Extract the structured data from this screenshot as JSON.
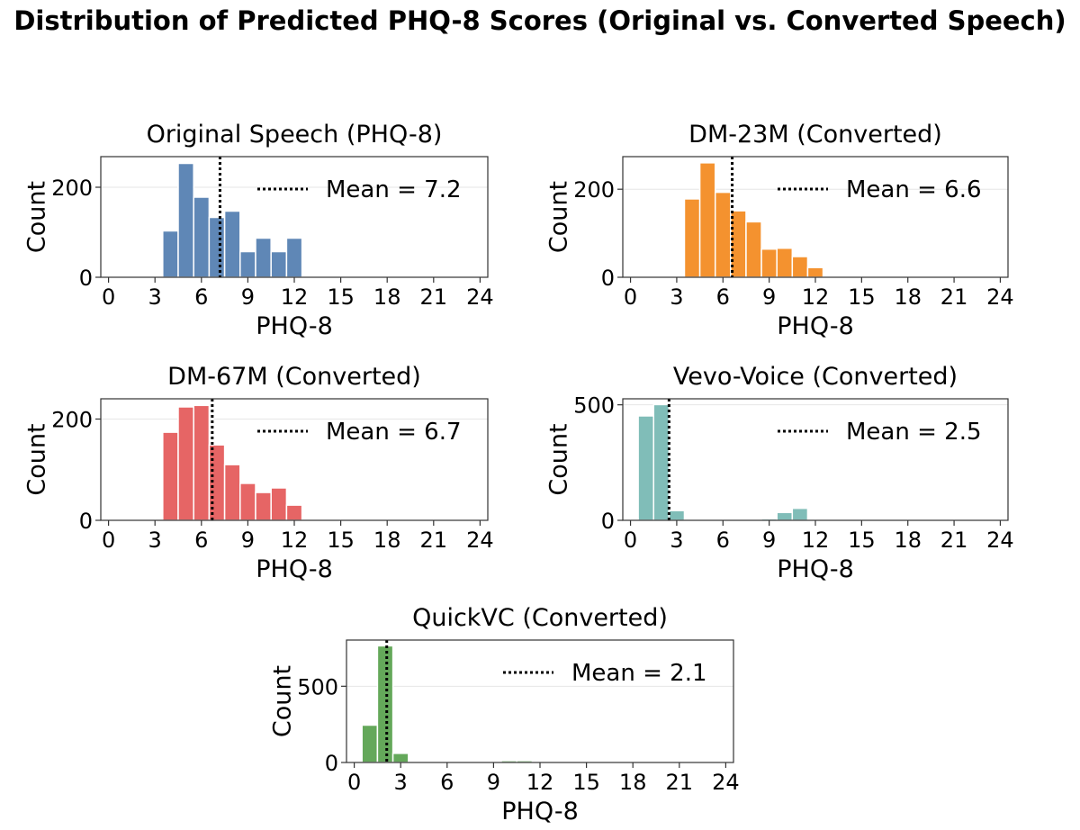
{
  "title": "Distribution of Predicted PHQ-8 Scores (Original vs. Converted Speech)",
  "chart_data": [
    {
      "type": "bar",
      "title": "Original Speech (PHQ-8)",
      "xlabel": "PHQ-8",
      "ylabel": "Count",
      "color": "#5f87b6",
      "bin_edges": [
        3.5,
        4.5,
        5.5,
        6.5,
        7.5,
        8.5,
        9.5,
        10.5,
        11.5,
        12.5
      ],
      "values": [
        103,
        253,
        178,
        133,
        147,
        57,
        87,
        57,
        87
      ],
      "mean": 7.2,
      "legend": "Mean = 7.2",
      "xlim": [
        -0.5,
        24.5
      ],
      "ylim": [
        0,
        268
      ],
      "xticks": [
        0,
        3,
        6,
        9,
        12,
        15,
        18,
        21,
        24
      ],
      "yticks": [
        0,
        200
      ],
      "grid": "y",
      "legend_position": "upper right"
    },
    {
      "type": "bar",
      "title": "DM-23M (Converted)",
      "xlabel": "PHQ-8",
      "ylabel": "Count",
      "color": "#f4922f",
      "bin_edges": [
        3.5,
        4.5,
        5.5,
        6.5,
        7.5,
        8.5,
        9.5,
        10.5,
        11.5,
        12.5
      ],
      "values": [
        178,
        260,
        193,
        151,
        126,
        64,
        66,
        47,
        22
      ],
      "mean": 6.6,
      "legend": "Mean = 6.6",
      "xlim": [
        -0.5,
        24.5
      ],
      "ylim": [
        0,
        274
      ],
      "xticks": [
        0,
        3,
        6,
        9,
        12,
        15,
        18,
        21,
        24
      ],
      "yticks": [
        0,
        200
      ],
      "grid": "y",
      "legend_position": "upper right"
    },
    {
      "type": "bar",
      "title": "DM-67M (Converted)",
      "xlabel": "PHQ-8",
      "ylabel": "Count",
      "color": "#e66565",
      "bin_edges": [
        3.5,
        4.5,
        5.5,
        6.5,
        7.5,
        8.5,
        9.5,
        10.5,
        11.5,
        12.5
      ],
      "values": [
        174,
        224,
        227,
        149,
        110,
        73,
        55,
        64,
        30
      ],
      "mean": 6.7,
      "legend": "Mean = 6.7",
      "xlim": [
        -0.5,
        24.5
      ],
      "ylim": [
        0,
        240
      ],
      "xticks": [
        0,
        3,
        6,
        9,
        12,
        15,
        18,
        21,
        24
      ],
      "yticks": [
        0,
        200
      ],
      "grid": "y",
      "legend_position": "upper right"
    },
    {
      "type": "bar",
      "title": "Vevo-Voice (Converted)",
      "xlabel": "PHQ-8",
      "ylabel": "Count",
      "color": "#80bdb8",
      "bin_edges": [
        0.5,
        1.5,
        2.5,
        3.5,
        4.5,
        5.5,
        6.5,
        7.5,
        8.5,
        9.5,
        10.5,
        11.5
      ],
      "values": [
        452,
        501,
        42,
        0,
        0,
        0,
        0,
        0,
        7,
        34,
        52
      ],
      "mean": 2.5,
      "legend": "Mean = 2.5",
      "xlim": [
        -0.5,
        24.5
      ],
      "ylim": [
        0,
        526
      ],
      "xticks": [
        0,
        3,
        6,
        9,
        12,
        15,
        18,
        21,
        24
      ],
      "yticks": [
        0,
        500
      ],
      "grid": "y",
      "legend_position": "upper right"
    },
    {
      "type": "bar",
      "title": "QuickVC (Converted)",
      "xlabel": "PHQ-8",
      "ylabel": "Count",
      "color": "#64a85a",
      "bin_edges": [
        0.5,
        1.5,
        2.5,
        3.5,
        4.5,
        5.5,
        6.5,
        7.5,
        8.5,
        9.5,
        10.5,
        11.5
      ],
      "values": [
        245,
        765,
        60,
        0,
        0,
        0,
        0,
        0,
        0,
        12,
        12
      ],
      "mean": 2.1,
      "legend": "Mean = 2.1",
      "xlim": [
        -0.5,
        24.5
      ],
      "ylim": [
        0,
        803
      ],
      "xticks": [
        0,
        3,
        6,
        9,
        12,
        15,
        18,
        21,
        24
      ],
      "yticks": [
        0,
        500
      ],
      "grid": "y",
      "legend_position": "upper right"
    }
  ]
}
